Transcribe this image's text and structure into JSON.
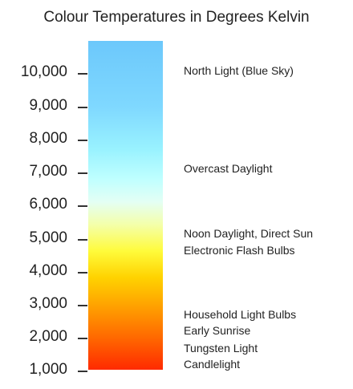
{
  "title": "Colour Temperatures in Degrees Kelvin",
  "axis": {
    "min": 1000,
    "max": 10000,
    "ticks": [
      {
        "value": 10000,
        "label": "10,000"
      },
      {
        "value": 9000,
        "label": "9,000"
      },
      {
        "value": 8000,
        "label": "8,000"
      },
      {
        "value": 7000,
        "label": "7,000"
      },
      {
        "value": 6000,
        "label": "6,000"
      },
      {
        "value": 5000,
        "label": "5,000"
      },
      {
        "value": 4000,
        "label": "4,000"
      },
      {
        "value": 3000,
        "label": "3,000"
      },
      {
        "value": 2000,
        "label": "2,000"
      },
      {
        "value": 1000,
        "label": "1,000"
      }
    ]
  },
  "gradient": {
    "low_color": "#ff2a00",
    "high_color": "#6cc8fb"
  },
  "light_sources": [
    {
      "label": "North Light (Blue Sky)"
    },
    {
      "label": "Overcast Daylight"
    },
    {
      "label": "Noon Daylight, Direct Sun"
    },
    {
      "label": "Electronic Flash Bulbs"
    },
    {
      "label": "Household Light Bulbs"
    },
    {
      "label": "Early Sunrise"
    },
    {
      "label": "Tungsten Light"
    },
    {
      "label": "Candlelight"
    }
  ]
}
